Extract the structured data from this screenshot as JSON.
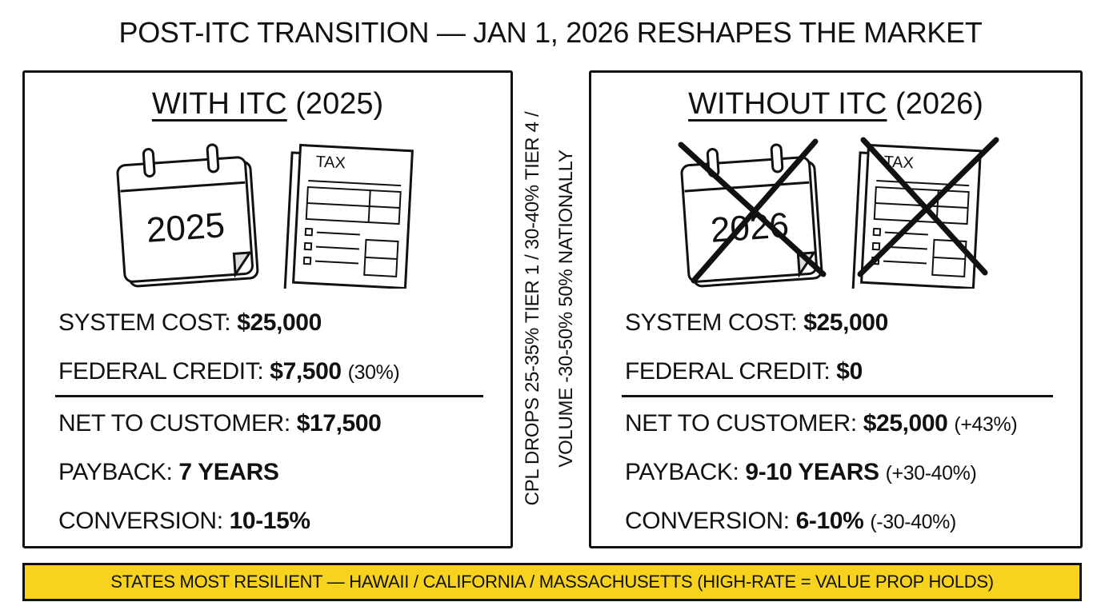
{
  "title": "POST-ITC TRANSITION — JAN 1, 2026 RESHAPES THE MARKET",
  "left": {
    "heading": {
      "main": "WITH ITC",
      "year": "(2025)"
    },
    "calendar": "2025",
    "form": "TAX",
    "rows": [
      {
        "label": "SYSTEM COST:",
        "value": "$25,000"
      },
      {
        "label": "FEDERAL CREDIT:",
        "value": "$7,500",
        "note": "(30%)"
      },
      {
        "label": "NET TO CUSTOMER:",
        "value": "$17,500"
      },
      {
        "label": "PAYBACK:",
        "value": "7 YEARS"
      },
      {
        "label": "CONVERSION:",
        "value": "10-15%"
      }
    ]
  },
  "right": {
    "heading": {
      "main": "WITHOUT ITC",
      "year": "(2026)"
    },
    "calendar": "2026",
    "form": "TAX",
    "rows": [
      {
        "label": "SYSTEM COST:",
        "value": "$25,000"
      },
      {
        "label": "FEDERAL CREDIT:",
        "value": "$0"
      },
      {
        "label": "NET TO CUSTOMER:",
        "value": "$25,000",
        "note": "(+43%)"
      },
      {
        "label": "PAYBACK:",
        "value": "9-10 YEARS",
        "note": "(+30-40%)"
      },
      {
        "label": "CONVERSION:",
        "value": "6-10%",
        "note": "(-30-40%)"
      }
    ]
  },
  "side_note": [
    "CPL DROPS 25-35% TIER 1 / 30-40% TIER 4 /",
    "VOLUME -30-50% 50% NATIONALLY"
  ],
  "footer": "STATES MOST RESILIENT — HAWAII / CALIFORNIA / MASSACHUSETTS (HIGH-RATE = VALUE PROP HOLDS)"
}
